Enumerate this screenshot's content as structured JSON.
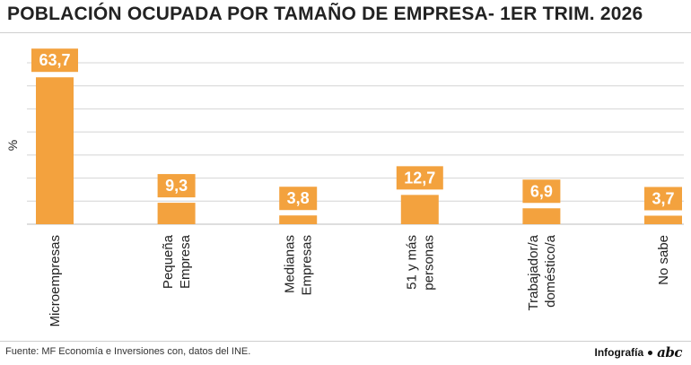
{
  "title": "POBLACIÓN OCUPADA POR TAMAÑO DE EMPRESA- 1ER TRIM. 2026",
  "source": "Fuente: MF Economía e Inversiones con, datos del INE.",
  "credit": {
    "label": "Infografía",
    "brand": "abc"
  },
  "colors": {
    "bar": "#f3a23e",
    "grid": "#d4d4d4",
    "label_text": "#ffffff",
    "axis_text": "#222222"
  },
  "chart_data": {
    "type": "bar",
    "ylabel": "%",
    "ylim": [
      0,
      70
    ],
    "grid": true,
    "data_labels": true,
    "categories": [
      [
        "Microempresas"
      ],
      [
        "Pequeña",
        "Empresa"
      ],
      [
        "Medianas",
        "Empresas"
      ],
      [
        "51 y más",
        "personas"
      ],
      [
        "Trabajador/a",
        "doméstico/a"
      ],
      [
        "No sabe"
      ]
    ],
    "values": [
      63.7,
      9.3,
      3.8,
      12.7,
      6.9,
      3.7
    ],
    "value_labels": [
      "63,7",
      "9,3",
      "3,8",
      "12,7",
      "6,9",
      "3,7"
    ]
  }
}
